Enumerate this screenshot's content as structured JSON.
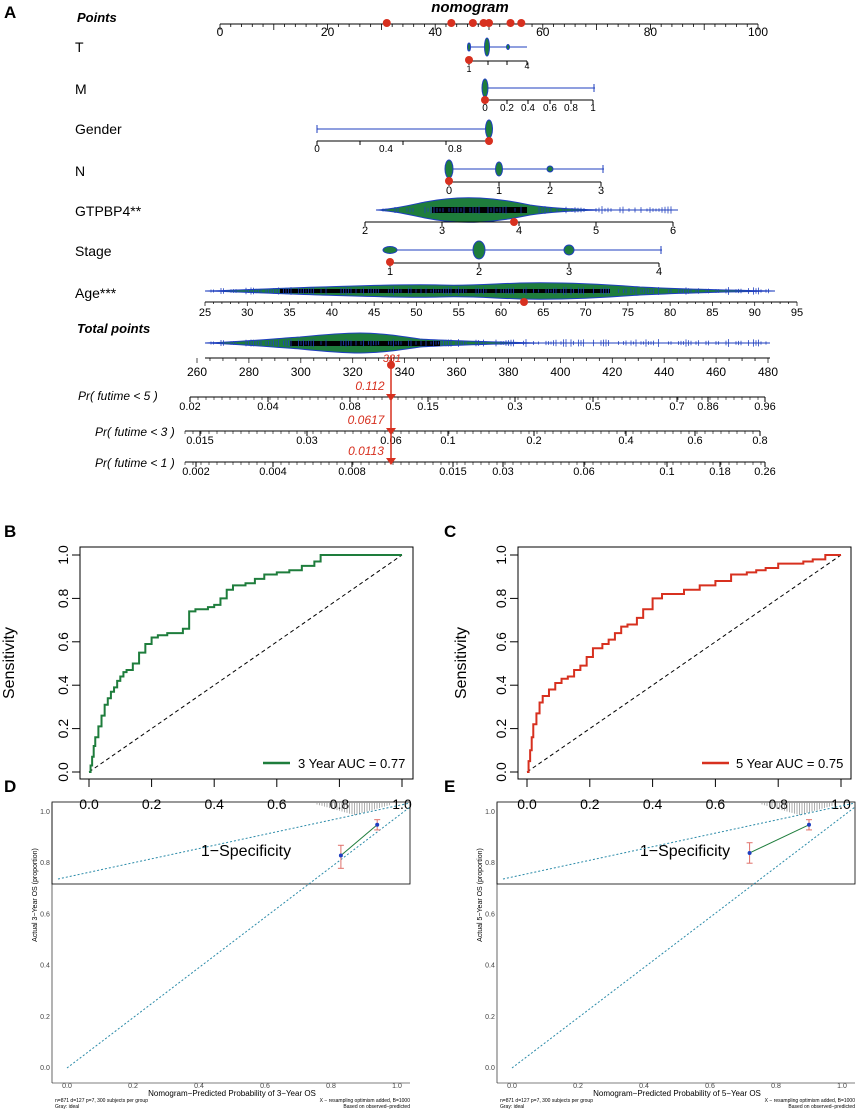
{
  "panel_labels": {
    "a": "A",
    "b": "B",
    "c": "C",
    "d": "D",
    "e": "E"
  },
  "chart_data": [
    {
      "type": "nomogram",
      "title": "nomogram",
      "points_axis": {
        "label": "Points",
        "ticks": [
          0,
          20,
          40,
          60,
          80,
          100
        ]
      },
      "variables": [
        {
          "label": "T",
          "ticks": [
            "1",
            "4"
          ]
        },
        {
          "label": "M",
          "ticks": [
            "0",
            "0.2",
            "0.4",
            "0.6",
            "0.8",
            "1"
          ]
        },
        {
          "label": "Gender",
          "ticks": [
            "0",
            "0.4",
            "0.8"
          ]
        },
        {
          "label": "N",
          "ticks": [
            "0",
            "1",
            "2",
            "3"
          ]
        },
        {
          "label": "GTPBP4**",
          "ticks": [
            "2",
            "3",
            "4",
            "5",
            "6"
          ]
        },
        {
          "label": "Stage",
          "ticks": [
            "1",
            "2",
            "3",
            "4"
          ]
        },
        {
          "label": "Age***",
          "ticks": [
            "25",
            "30",
            "35",
            "40",
            "45",
            "50",
            "55",
            "60",
            "65",
            "70",
            "75",
            "80",
            "85",
            "90",
            "95"
          ]
        }
      ],
      "points_markers": [
        31,
        43,
        47,
        49,
        50,
        54,
        56
      ],
      "total_points": {
        "label": "Total points",
        "ticks": [
          "260",
          "280",
          "300",
          "320",
          "340",
          "360",
          "380",
          "400",
          "420",
          "440",
          "460",
          "480"
        ],
        "value": "331"
      },
      "probabilities": [
        {
          "label": "Pr( futime < 5 )",
          "value": "0.112",
          "ticks": [
            "0.02",
            "0.04",
            "0.08",
            "0.15",
            "0.3",
            "0.5",
            "0.7",
            "0.86",
            "0.96"
          ]
        },
        {
          "label": "Pr( futime < 3 )",
          "value": "0.0617",
          "ticks": [
            "0.015",
            "0.03",
            "0.06",
            "0.1",
            "0.2",
            "0.4",
            "0.6",
            "0.8"
          ]
        },
        {
          "label": "Pr( futime < 1 )",
          "value": "0.0113",
          "ticks": [
            "0.002",
            "0.004",
            "0.008",
            "0.015",
            "0.03",
            "0.06",
            "0.1",
            "0.18",
            "0.26"
          ]
        }
      ]
    },
    {
      "type": "line",
      "title": "",
      "xlabel": "1−Specificity",
      "ylabel": "Sensitivity",
      "xlim": [
        0,
        1
      ],
      "ylim": [
        0,
        1
      ],
      "ticks": [
        "0.0",
        "0.2",
        "0.4",
        "0.6",
        "0.8",
        "1.0"
      ],
      "legend": "3 Year AUC = 0.77",
      "color": "#1e7d3c",
      "x": [
        0,
        0.005,
        0.01,
        0.015,
        0.02,
        0.03,
        0.04,
        0.05,
        0.06,
        0.07,
        0.08,
        0.09,
        0.1,
        0.11,
        0.12,
        0.14,
        0.16,
        0.18,
        0.2,
        0.22,
        0.25,
        0.28,
        0.3,
        0.32,
        0.34,
        0.36,
        0.38,
        0.4,
        0.42,
        0.44,
        0.46,
        0.48,
        0.5,
        0.53,
        0.56,
        0.6,
        0.64,
        0.68,
        0.72,
        0.74,
        0.76,
        1.0
      ],
      "y": [
        0,
        0.03,
        0.07,
        0.12,
        0.16,
        0.21,
        0.26,
        0.31,
        0.34,
        0.37,
        0.39,
        0.42,
        0.44,
        0.46,
        0.47,
        0.5,
        0.55,
        0.59,
        0.62,
        0.63,
        0.64,
        0.64,
        0.66,
        0.74,
        0.75,
        0.75,
        0.76,
        0.77,
        0.8,
        0.84,
        0.86,
        0.86,
        0.87,
        0.89,
        0.91,
        0.92,
        0.93,
        0.95,
        0.97,
        1.0,
        1.0,
        1.0
      ],
      "reference_line": [
        [
          0,
          0
        ],
        [
          1,
          1
        ]
      ]
    },
    {
      "type": "line",
      "title": "",
      "xlabel": "1−Specificity",
      "ylabel": "Sensitivity",
      "xlim": [
        0,
        1
      ],
      "ylim": [
        0,
        1
      ],
      "ticks": [
        "0.0",
        "0.2",
        "0.4",
        "0.6",
        "0.8",
        "1.0"
      ],
      "legend": "5 Year AUC = 0.75",
      "color": "#d7301f",
      "x": [
        0,
        0.005,
        0.01,
        0.015,
        0.02,
        0.03,
        0.04,
        0.05,
        0.07,
        0.09,
        0.11,
        0.13,
        0.15,
        0.17,
        0.19,
        0.21,
        0.24,
        0.26,
        0.28,
        0.3,
        0.32,
        0.35,
        0.37,
        0.4,
        0.43,
        0.46,
        0.5,
        0.55,
        0.6,
        0.65,
        0.7,
        0.73,
        0.76,
        0.8,
        0.88,
        0.91,
        0.95,
        1.0
      ],
      "y": [
        0,
        0.05,
        0.1,
        0.16,
        0.22,
        0.27,
        0.32,
        0.35,
        0.38,
        0.41,
        0.43,
        0.44,
        0.47,
        0.49,
        0.53,
        0.57,
        0.59,
        0.61,
        0.64,
        0.67,
        0.68,
        0.71,
        0.75,
        0.8,
        0.82,
        0.82,
        0.84,
        0.86,
        0.88,
        0.91,
        0.92,
        0.93,
        0.94,
        0.96,
        0.97,
        0.98,
        1.0,
        1.0
      ],
      "reference_line": [
        [
          0,
          0
        ],
        [
          1,
          1
        ]
      ]
    },
    {
      "type": "scatter",
      "title": "",
      "xlabel": "Nomogram−Predicted Probability of 3−Year OS",
      "ylabel": "Actual 3−Year OS (proportion)",
      "xlim": [
        0,
        1
      ],
      "ylim": [
        0,
        1
      ],
      "ticks": [
        "0.0",
        "0.2",
        "0.4",
        "0.6",
        "0.8",
        "1.0"
      ],
      "points": [
        {
          "x": 0.83,
          "y": 0.83,
          "lo": 0.78,
          "hi": 0.87
        },
        {
          "x": 0.94,
          "y": 0.95,
          "lo": 0.93,
          "hi": 0.97
        }
      ],
      "footnote_left": [
        "n=871 d=127 p=7, 300 subjects per group",
        "Gray: ideal"
      ],
      "footnote_right": [
        "X − resampling optimism added, B=1000",
        "Based on observed−predicted"
      ]
    },
    {
      "type": "scatter",
      "title": "",
      "xlabel": "Nomogram−Predicted Probability of 5−Year OS",
      "ylabel": "Actual 5−Year OS (proportion)",
      "xlim": [
        0,
        1
      ],
      "ylim": [
        0,
        1
      ],
      "ticks": [
        "0.0",
        "0.2",
        "0.4",
        "0.6",
        "0.8",
        "1.0"
      ],
      "points": [
        {
          "x": 0.72,
          "y": 0.84,
          "lo": 0.8,
          "hi": 0.88
        },
        {
          "x": 0.9,
          "y": 0.95,
          "lo": 0.93,
          "hi": 0.97
        }
      ],
      "footnote_left": [
        "n=871 d=127 p=7, 300 subjects per group",
        "Gray: ideal"
      ],
      "footnote_right": [
        "X − resampling optimism added, B=1000",
        "Based on observed−predicted"
      ]
    }
  ]
}
